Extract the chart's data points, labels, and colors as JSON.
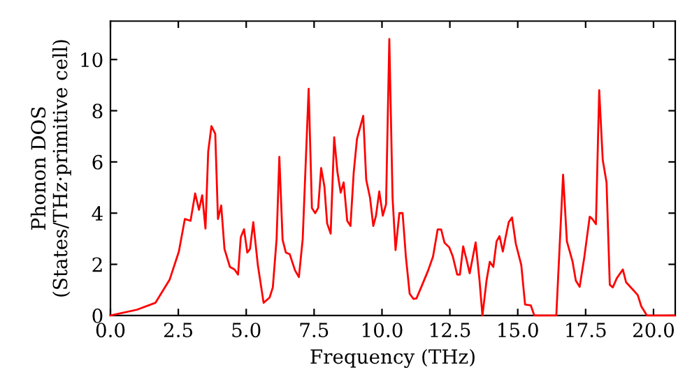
{
  "chart_data": {
    "type": "line",
    "xlabel": "Frequency (THz)",
    "ylabel": "Phonon DOS\n(States/THz·primitive cell)",
    "xlim": [
      0,
      20.8
    ],
    "ylim": [
      0,
      11.5
    ],
    "xticks": [
      {
        "value": 0,
        "label": "0.0"
      },
      {
        "value": 2.5,
        "label": "2.5"
      },
      {
        "value": 5,
        "label": "5.0"
      },
      {
        "value": 7.5,
        "label": "7.5"
      },
      {
        "value": 10,
        "label": "10.0"
      },
      {
        "value": 12.5,
        "label": "12.5"
      },
      {
        "value": 15,
        "label": "15.0"
      },
      {
        "value": 17.5,
        "label": "17.5"
      },
      {
        "value": 20,
        "label": "20.0"
      }
    ],
    "yticks": [
      0,
      2,
      4,
      6,
      8,
      10
    ],
    "grid": false,
    "legend": false,
    "marker": "none",
    "line_style": "solid",
    "series": [
      {
        "color": "#ff0000",
        "x": [
          0,
          0.98,
          1.66,
          2.18,
          2.52,
          2.74,
          2.95,
          3.12,
          3.26,
          3.38,
          3.5,
          3.6,
          3.72,
          3.86,
          3.96,
          4.08,
          4.2,
          4.4,
          4.57,
          4.7,
          4.8,
          4.92,
          5.04,
          5.14,
          5.26,
          5.43,
          5.64,
          5.86,
          5.98,
          6.12,
          6.22,
          6.34,
          6.46,
          6.6,
          6.8,
          6.94,
          7.08,
          7.3,
          7.42,
          7.54,
          7.65,
          7.76,
          7.88,
          7.98,
          8.11,
          8.24,
          8.36,
          8.48,
          8.59,
          8.72,
          8.84,
          8.96,
          9.08,
          9.31,
          9.42,
          9.56,
          9.68,
          9.78,
          9.9,
          10.03,
          10.15,
          10.27,
          10.39,
          10.5,
          10.64,
          10.76,
          10.88,
          11.02,
          11.16,
          11.27,
          11.45,
          11.7,
          11.88,
          12.05,
          12.18,
          12.3,
          12.48,
          12.61,
          12.77,
          12.87,
          12.99,
          13.11,
          13.23,
          13.45,
          13.59,
          13.7,
          13.85,
          13.97,
          14.1,
          14.22,
          14.33,
          14.45,
          14.57,
          14.67,
          14.79,
          14.93,
          15.13,
          15.27,
          15.48,
          15.61,
          16.42,
          16.67,
          16.81,
          17.02,
          17.14,
          17.28,
          17.45,
          17.65,
          17.75,
          17.88,
          18.0,
          18.13,
          18.27,
          18.39,
          18.5,
          18.65,
          18.87,
          18.99,
          19.25,
          19.42,
          19.55,
          19.76,
          20.77
        ],
        "values": [
          0,
          0.23,
          0.5,
          1.4,
          2.5,
          3.77,
          3.7,
          4.77,
          4.13,
          4.7,
          3.4,
          6.4,
          7.4,
          7.1,
          3.77,
          4.3,
          2.6,
          1.9,
          1.8,
          1.6,
          3.06,
          3.37,
          2.46,
          2.6,
          3.65,
          1.96,
          0.5,
          0.7,
          1.1,
          3.0,
          6.2,
          2.96,
          2.46,
          2.4,
          1.76,
          1.5,
          2.98,
          8.86,
          4.2,
          4.0,
          4.2,
          5.76,
          5.04,
          3.6,
          3.2,
          6.96,
          5.6,
          4.8,
          5.2,
          3.7,
          3.5,
          5.6,
          6.9,
          7.8,
          5.3,
          4.6,
          3.5,
          3.9,
          4.85,
          3.9,
          4.35,
          10.8,
          4.6,
          2.56,
          4.0,
          4.0,
          2.3,
          0.85,
          0.65,
          0.67,
          1.12,
          1.76,
          2.3,
          3.36,
          3.36,
          2.85,
          2.66,
          2.3,
          1.6,
          1.6,
          2.7,
          2.2,
          1.65,
          2.86,
          1.4,
          0,
          1.36,
          2.1,
          1.9,
          2.9,
          3.1,
          2.5,
          3.15,
          3.65,
          3.83,
          2.8,
          1.97,
          0.43,
          0.4,
          0,
          0,
          5.5,
          2.9,
          2.1,
          1.36,
          1.12,
          2.27,
          3.86,
          3.77,
          3.57,
          8.8,
          6.08,
          5.2,
          1.2,
          1.1,
          1.46,
          1.8,
          1.3,
          1.0,
          0.8,
          0.36,
          0,
          0
        ]
      }
    ]
  }
}
